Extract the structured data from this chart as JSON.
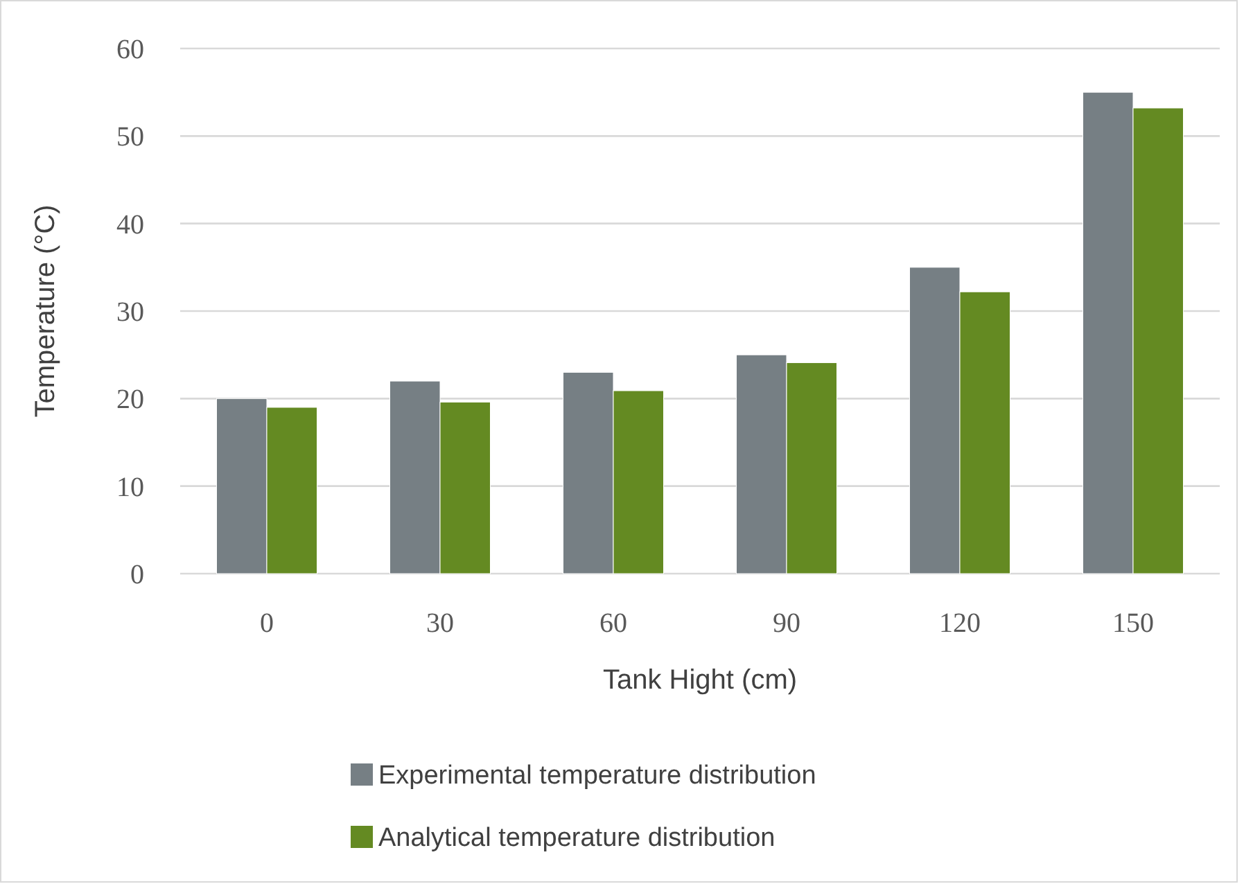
{
  "chart_data": {
    "type": "bar",
    "xlabel": "Tank Hight (cm)",
    "ylabel": "Temperature (°C)",
    "categories": [
      "0",
      "30",
      "60",
      "90",
      "120",
      "150"
    ],
    "series": [
      {
        "name": "Experimental temperature distribution",
        "color": "#767f84",
        "values": [
          20,
          22,
          23,
          25,
          35,
          55
        ]
      },
      {
        "name": "Analytical temperature distribution",
        "color": "#648a22",
        "values": [
          19,
          19.6,
          20.9,
          24.1,
          32.2,
          53.2
        ]
      }
    ],
    "ylim": [
      0,
      60
    ],
    "yticks": [
      0,
      10,
      20,
      30,
      40,
      50,
      60
    ],
    "grid": "y",
    "legend": "bottom"
  }
}
